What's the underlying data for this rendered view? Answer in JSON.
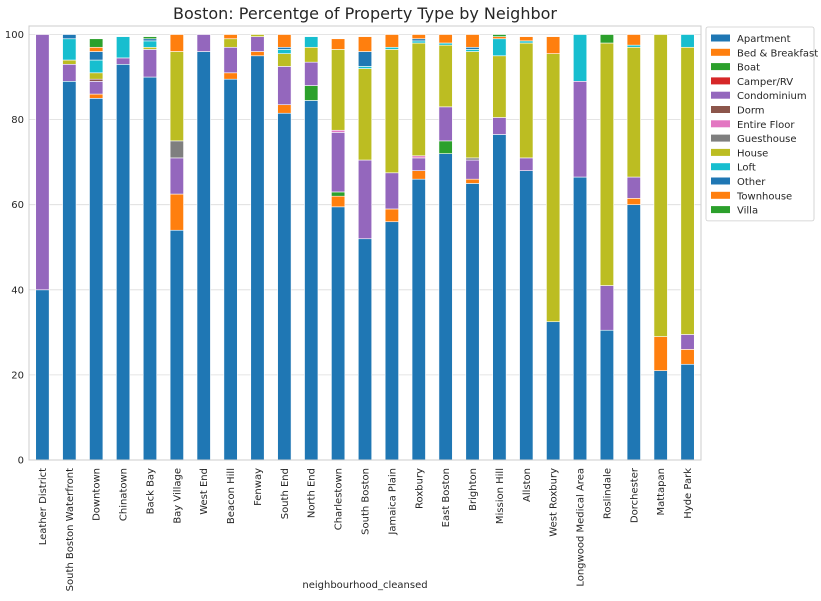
{
  "chart_data": {
    "type": "bar",
    "stacked": true,
    "title": "Boston: Percentge of Property Type by Neighbor",
    "xlabel": "neighbourhood_cleansed",
    "ylabel": "",
    "ylim": [
      0,
      102
    ],
    "yticks": [
      0,
      20,
      40,
      60,
      80,
      100
    ],
    "grid": "horizontal",
    "legend_position": "outside-right",
    "categories": [
      "Leather District",
      "South Boston Waterfront",
      "Downtown",
      "Chinatown",
      "Back Bay",
      "Bay Village",
      "West End",
      "Beacon Hill",
      "Fenway",
      "South End",
      "North End",
      "Charlestown",
      "South Boston",
      "Jamaica Plain",
      "Roxbury",
      "East Boston",
      "Brighton",
      "Mission Hill",
      "Allston",
      "West Roxbury",
      "Longwood Medical Area",
      "Roslindale",
      "Dorchester",
      "Mattapan",
      "Hyde Park"
    ],
    "series": [
      {
        "name": "Apartment",
        "color": "#1f77b4",
        "values": [
          40,
          89,
          85,
          93,
          90,
          54,
          96,
          89.5,
          95,
          81.5,
          84.5,
          59.5,
          52,
          56,
          66,
          72,
          65,
          76.5,
          68,
          32.5,
          66.5,
          30.5,
          60,
          21,
          22.5
        ]
      },
      {
        "name": "Bed & Breakfast",
        "color": "#ff7f0e",
        "values": [
          0,
          0,
          1,
          0,
          0,
          8.5,
          0,
          1.5,
          1,
          2,
          0,
          2.5,
          0,
          3,
          2,
          0,
          1,
          0,
          0,
          0,
          0,
          0,
          1.5,
          8,
          3.5
        ]
      },
      {
        "name": "Boat",
        "color": "#2ca02c",
        "values": [
          0,
          0,
          0,
          0,
          0,
          0,
          0,
          0,
          0,
          0,
          3.5,
          1,
          0,
          0,
          0,
          3,
          0,
          0,
          0,
          0,
          0,
          0,
          0,
          0,
          0
        ]
      },
      {
        "name": "Camper/RV",
        "color": "#d62728",
        "values": [
          0,
          0,
          0,
          0,
          0,
          0,
          0,
          0,
          0,
          0,
          0,
          0,
          0,
          0,
          0,
          0,
          0,
          0,
          0,
          0,
          0,
          0,
          0,
          0,
          0
        ]
      },
      {
        "name": "Condominium",
        "color": "#9467bd",
        "values": [
          60,
          4,
          3,
          1.5,
          6.5,
          8.5,
          4,
          6,
          3.5,
          9,
          5.5,
          14,
          18.5,
          8.5,
          3,
          8,
          4.5,
          4,
          3,
          0,
          22.5,
          10.5,
          5,
          0,
          3.5
        ]
      },
      {
        "name": "Dorm",
        "color": "#8c564b",
        "values": [
          0,
          0,
          0.5,
          0,
          0,
          0,
          0,
          0,
          0,
          0,
          0,
          0,
          0,
          0,
          0,
          0,
          0,
          0,
          0,
          0,
          0,
          0,
          0,
          0,
          0
        ]
      },
      {
        "name": "Entire Floor",
        "color": "#e377c2",
        "values": [
          0,
          0,
          0,
          0,
          0,
          0,
          0,
          0,
          0,
          0,
          0,
          0.5,
          0,
          0,
          0.5,
          0,
          0,
          0,
          0,
          0,
          0,
          0,
          0,
          0,
          0
        ]
      },
      {
        "name": "Guesthouse",
        "color": "#7f7f7f",
        "values": [
          0,
          0,
          0,
          0,
          0,
          4,
          0,
          0,
          0,
          0,
          0,
          0,
          0,
          0,
          0,
          0,
          0.5,
          0,
          0,
          0,
          0,
          0,
          0,
          0,
          0
        ]
      },
      {
        "name": "House",
        "color": "#bcbd22",
        "values": [
          0,
          1,
          1.5,
          0,
          0.5,
          21,
          0,
          2,
          0.5,
          3,
          3.5,
          19,
          21.5,
          29,
          26.5,
          14.5,
          25,
          14.5,
          27,
          63,
          0,
          57,
          30.5,
          71,
          67.5
        ]
      },
      {
        "name": "Loft",
        "color": "#17becf",
        "values": [
          0,
          5,
          3,
          5,
          1.5,
          0,
          0,
          0,
          0,
          1,
          2.5,
          0,
          0.5,
          0.5,
          0.5,
          0.5,
          0.5,
          4,
          0.5,
          0,
          11,
          0,
          0.5,
          0,
          3
        ]
      },
      {
        "name": "Other",
        "color": "#1f77b4",
        "values": [
          0,
          1,
          2,
          0,
          0.5,
          0,
          0,
          0,
          0,
          0.5,
          0,
          0,
          3.5,
          0,
          0.5,
          0,
          0.5,
          0,
          0,
          0,
          0,
          0,
          0,
          0,
          0
        ]
      },
      {
        "name": "Townhouse",
        "color": "#ff7f0e",
        "values": [
          0,
          0,
          1,
          0,
          0,
          4,
          0,
          1,
          0,
          3,
          0,
          2.5,
          3.5,
          3,
          1,
          2,
          3,
          0.5,
          1,
          4,
          0,
          0,
          2.5,
          0,
          0
        ]
      },
      {
        "name": "Villa",
        "color": "#2ca02c",
        "values": [
          0,
          0,
          2,
          0,
          0.5,
          0,
          0,
          0,
          0,
          0,
          0,
          0,
          0,
          0,
          0,
          0,
          0,
          0.5,
          0,
          0,
          0,
          2,
          0,
          0,
          0
        ]
      }
    ]
  }
}
